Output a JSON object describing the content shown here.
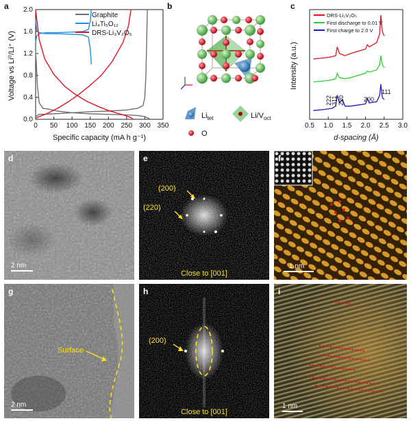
{
  "panel_letters": {
    "a": "a",
    "b": "b",
    "c": "c",
    "d": "d",
    "e": "e",
    "f": "f",
    "g": "g",
    "h": "h",
    "i": "i"
  },
  "panel_a": {
    "ylabel": "Voltage vs Li⁰/Li⁺ (V)",
    "xlabel": "Specific capacity (mA h g⁻¹)",
    "legend": [
      {
        "name": "Graphite",
        "color": "#707070"
      },
      {
        "name": "Li₄Ti₅O₁₂",
        "color": "#1f8fe6"
      },
      {
        "name": "DRS-Li₃V₂O₅",
        "color": "#e0141e"
      }
    ]
  },
  "panel_b": {
    "legend_tet": "Li",
    "legend_tet_sub": "tet",
    "legend_oct": "Li/V",
    "legend_oct_sub": "oct",
    "legend_o": "O"
  },
  "panel_c": {
    "ylabel": "Intensity (a.u.)",
    "xlabel": "d-spacing (Å)",
    "legend": [
      {
        "name": "DRS-Li₃V₂O₅",
        "color": "#e0141e"
      },
      {
        "name": "First discharge to 0.01 V",
        "color": "#2bd12b"
      },
      {
        "name": "First charge to 2.0 V",
        "color": "#1a1ac8"
      }
    ],
    "peak_labels": [
      "222",
      "311",
      "220",
      "200",
      "111"
    ]
  },
  "panel_d": {
    "scalebar": "2 nm"
  },
  "panel_e": {
    "label1": "(200)",
    "label2": "(220)",
    "caption": "Close to [001]"
  },
  "panel_f": {
    "scalebar": "1 nm"
  },
  "panel_g": {
    "scalebar": "2 nm",
    "surface": "Surface"
  },
  "panel_h": {
    "label1": "(200)",
    "caption": "Close to [001]"
  },
  "panel_i": {
    "scalebar": "1 nm"
  },
  "chart_data": [
    {
      "type": "line",
      "title": "",
      "xlabel": "Specific capacity (mA h g⁻¹)",
      "ylabel": "Voltage vs Li⁰/Li⁺ (V)",
      "xlim": [
        0,
        350
      ],
      "ylim": [
        0,
        2.0
      ],
      "xticks": [
        0,
        50,
        100,
        150,
        200,
        250,
        300,
        350
      ],
      "yticks": [
        0.0,
        0.4,
        0.8,
        1.2,
        1.6,
        2.0
      ],
      "series": [
        {
          "name": "Graphite",
          "color": "#707070",
          "discharge": {
            "x": [
              0,
              5,
              10,
              20,
              40,
              60,
              100,
              150,
              200,
              250,
              280,
              300,
              310,
              315
            ],
            "y": [
              1.25,
              0.6,
              0.3,
              0.2,
              0.18,
              0.15,
              0.12,
              0.1,
              0.09,
              0.08,
              0.07,
              0.05,
              0.02,
              0.0
            ]
          },
          "charge": {
            "x": [
              0,
              10,
              50,
              100,
              150,
              200,
              250,
              280,
              295,
              300,
              303,
              305,
              307
            ],
            "y": [
              0.05,
              0.09,
              0.1,
              0.12,
              0.14,
              0.15,
              0.17,
              0.2,
              0.25,
              0.4,
              0.8,
              1.4,
              2.0
            ]
          }
        },
        {
          "name": "Li₄Ti₅O₁₂",
          "color": "#1f8fe6",
          "discharge": {
            "x": [
              0,
              3,
              10,
              30,
              60,
              100,
              130,
              145,
              150,
              153
            ],
            "y": [
              1.8,
              1.62,
              1.58,
              1.56,
              1.56,
              1.55,
              1.54,
              1.5,
              1.3,
              1.0
            ]
          },
          "charge": {
            "x": [
              0,
              3,
              10,
              30,
              60,
              100,
              130,
              145,
              150,
              153
            ],
            "y": [
              1.4,
              1.52,
              1.56,
              1.58,
              1.58,
              1.59,
              1.6,
              1.64,
              1.78,
              2.0
            ]
          }
        },
        {
          "name": "DRS-Li₃V₂O₅",
          "color": "#e0141e",
          "discharge": {
            "x": [
              0,
              10,
              25,
              50,
              80,
              110,
              140,
              170,
              200,
              230,
              250,
              262,
              268
            ],
            "y": [
              2.0,
              1.45,
              1.1,
              0.82,
              0.6,
              0.45,
              0.33,
              0.24,
              0.16,
              0.1,
              0.06,
              0.03,
              0.0
            ]
          },
          "charge": {
            "x": [
              0,
              10,
              30,
              60,
              90,
              120,
              150,
              180,
              210,
              240,
              255,
              262
            ],
            "y": [
              0.02,
              0.05,
              0.1,
              0.2,
              0.32,
              0.46,
              0.62,
              0.8,
              1.05,
              1.4,
              1.7,
              2.0
            ]
          }
        }
      ]
    },
    {
      "type": "line",
      "title": "",
      "xlabel": "d-spacing (Å)",
      "ylabel": "Intensity (a.u.)",
      "xlim": [
        0.5,
        3.0
      ],
      "xticks": [
        0.5,
        1.0,
        1.5,
        2.0,
        2.5,
        3.0
      ],
      "series": [
        {
          "name": "DRS-Li₃V₂O₅",
          "color": "#e0141e",
          "x": [
            0.6,
            0.9,
            1.1,
            1.2,
            1.24,
            1.3,
            1.45,
            1.6,
            1.8,
            2.0,
            2.05,
            2.1,
            2.3,
            2.38,
            2.41,
            2.45,
            2.5
          ],
          "y": [
            0.55,
            0.56,
            0.57,
            0.58,
            0.66,
            0.6,
            0.58,
            0.6,
            0.62,
            0.64,
            0.68,
            0.66,
            0.7,
            0.78,
            0.95,
            0.8,
            0.76
          ]
        },
        {
          "name": "First discharge to 0.01 V",
          "color": "#2bd12b",
          "x": [
            0.6,
            0.9,
            1.1,
            1.2,
            1.24,
            1.3,
            1.45,
            1.6,
            1.8,
            2.0,
            2.05,
            2.1,
            2.3,
            2.38,
            2.41,
            2.45,
            2.5
          ],
          "y": [
            0.34,
            0.35,
            0.36,
            0.37,
            0.42,
            0.38,
            0.37,
            0.38,
            0.4,
            0.42,
            0.44,
            0.43,
            0.45,
            0.5,
            0.58,
            0.5,
            0.47
          ]
        },
        {
          "name": "First charge to 2.0 V",
          "color": "#1a1ac8",
          "x": [
            0.6,
            0.9,
            1.1,
            1.2,
            1.24,
            1.3,
            1.38,
            1.45,
            1.6,
            1.8,
            2.0,
            2.05,
            2.1,
            2.3,
            2.38,
            2.41,
            2.45,
            2.5
          ],
          "y": [
            0.08,
            0.09,
            0.1,
            0.12,
            0.22,
            0.15,
            0.18,
            0.12,
            0.12,
            0.13,
            0.14,
            0.19,
            0.15,
            0.16,
            0.22,
            0.32,
            0.2,
            0.18
          ]
        }
      ]
    }
  ]
}
